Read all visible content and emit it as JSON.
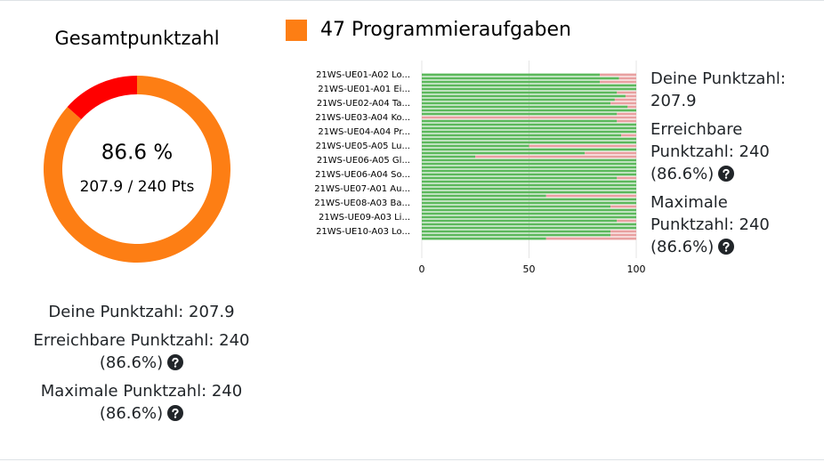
{
  "chart_data": [
    {
      "type": "pie",
      "title": "Gesamtpunktzahl",
      "values": [
        86.6,
        13.4
      ],
      "colors": [
        "#fd7e14",
        "#ff0000"
      ],
      "center_label": "86.6 %",
      "center_sublabel": "207.9 / 240 Pts"
    },
    {
      "type": "bar",
      "orientation": "horizontal",
      "stacked": true,
      "legend": "47 Programmieraufgaben",
      "legend_color": "#fd7e14",
      "categories": [
        "21WS-UE01-A02 Lo...",
        null,
        null,
        null,
        "21WS-UE01-A01 Ei...",
        null,
        null,
        null,
        "21WS-UE02-A04 Ta...",
        null,
        null,
        null,
        "21WS-UE03-A04 Ko...",
        null,
        null,
        null,
        "21WS-UE04-A04 Pr...",
        null,
        null,
        null,
        "21WS-UE05-A05 Lu...",
        null,
        null,
        null,
        "21WS-UE06-A05 Gl...",
        null,
        null,
        null,
        "21WS-UE06-A04 So...",
        null,
        null,
        null,
        "21WS-UE07-A01 Au...",
        null,
        null,
        null,
        "21WS-UE08-A03 Ba...",
        null,
        null,
        null,
        "21WS-UE09-A03 Li...",
        null,
        null,
        null,
        "21WS-UE10-A03 Lo...",
        null,
        null
      ],
      "series": [
        {
          "color": "#5cb85c",
          "values": [
            83,
            92,
            83,
            100,
            100,
            91,
            95,
            90,
            88,
            96,
            100,
            91,
            0,
            91,
            100,
            100,
            100,
            93,
            100,
            100,
            50,
            100,
            76,
            25,
            100,
            100,
            100,
            100,
            100,
            91,
            100,
            100,
            100,
            100,
            58,
            100,
            100,
            88,
            100,
            100,
            100,
            91,
            100,
            100,
            88,
            88,
            58
          ]
        },
        {
          "color": "#e8a0a0",
          "values": [
            17,
            8,
            17,
            0,
            0,
            9,
            5,
            10,
            12,
            4,
            0,
            9,
            100,
            9,
            0,
            0,
            0,
            7,
            0,
            0,
            50,
            0,
            24,
            75,
            0,
            0,
            0,
            0,
            0,
            9,
            0,
            0,
            0,
            0,
            42,
            0,
            0,
            12,
            0,
            0,
            0,
            9,
            0,
            0,
            12,
            12,
            42
          ]
        }
      ],
      "xlim": [
        0,
        100
      ],
      "xticks": [
        0,
        50,
        100
      ],
      "grid": true
    }
  ],
  "stats": [
    "Deine Punktzahl: 207.9",
    "Erreichbare Punktzahl: 240 (86.6%)",
    "Maximale Punktzahl: 240 (86.6%)"
  ],
  "stats_help": [
    false,
    true,
    true
  ]
}
